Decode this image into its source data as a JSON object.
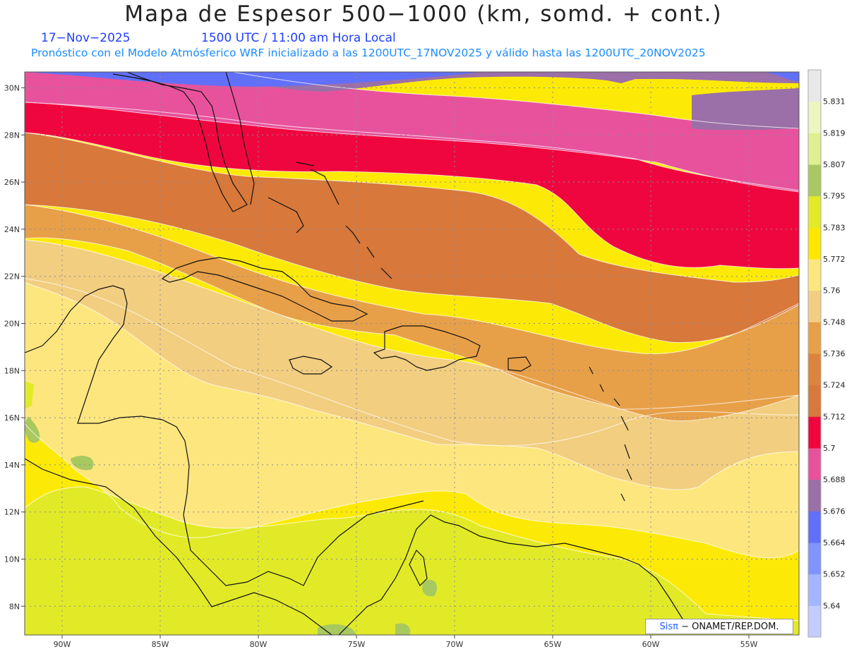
{
  "header": {
    "title": "Mapa de Espesor 500−1000 (km, somd. + cont.)",
    "date": "17−Nov−2025",
    "time": "1500 UTC / 11:00 am Hora Local",
    "forecast": "Pronóstico con el Modelo Atmósferico WRF inicializado a las 1200UTC_17NOV2025 y válido hasta las  1200UTC_20NOV2025"
  },
  "map": {
    "lon_ticks": [
      "90W",
      "85W",
      "80W",
      "75W",
      "70W",
      "65W",
      "60W",
      "55W"
    ],
    "lat_ticks": [
      "30N",
      "28N",
      "26N",
      "24N",
      "22N",
      "20N",
      "18N",
      "16N",
      "14N",
      "12N",
      "10N",
      "8N"
    ],
    "colors": {
      "band_5664": "#6170f8",
      "band_5676": "#9b6fa8",
      "band_5688": "#e8529c",
      "band_5700": "#f0063e",
      "band_5712": "#d8783a",
      "band_5724": "#e8a048",
      "band_5736": "#f2ce80",
      "band_5748": "#fee67e",
      "band_5772": "#fcea06",
      "band_5783": "#e2ea28",
      "band_5795": "#a8c860",
      "coast": "#111111"
    }
  },
  "colorbar": {
    "labels": [
      "5.64",
      "5.652",
      "5.664",
      "5.676",
      "5.688",
      "5.7",
      "5.712",
      "5.724",
      "5.736",
      "5.748",
      "5.76",
      "5.772",
      "5.783",
      "5.795",
      "5.807",
      "5.819",
      "5.831"
    ],
    "colors": [
      "#c2ccff",
      "#a3b6ff",
      "#7f94ff",
      "#6170f8",
      "#9b6fa8",
      "#e8529c",
      "#f0063e",
      "#d8783a",
      "#dc843e",
      "#e8a048",
      "#f2ce80",
      "#fee67e",
      "#fee800",
      "#e2ea28",
      "#a8c860",
      "#dff090",
      "#eef5c0",
      "#e8e8e8"
    ]
  },
  "credit": {
    "logo": "Sisπ",
    "text": "− ONAMET/REP.DOM."
  }
}
